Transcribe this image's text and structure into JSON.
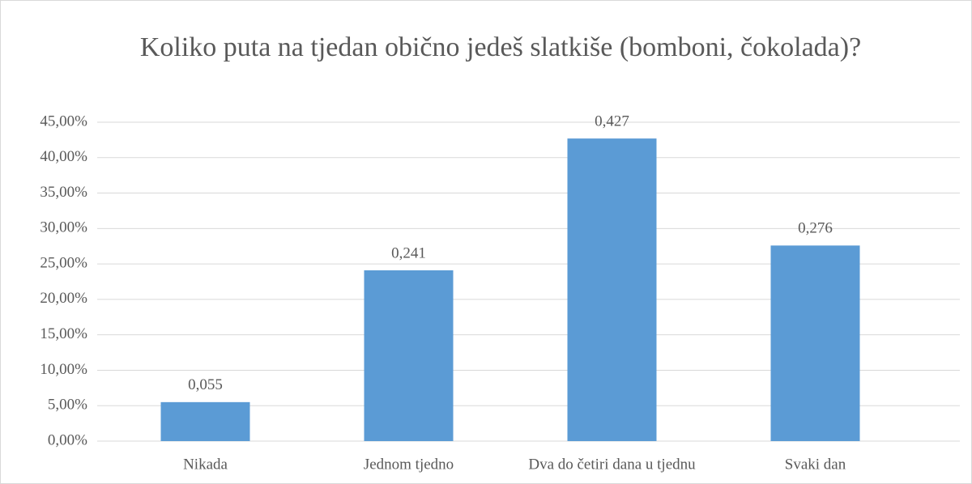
{
  "chart_data": {
    "type": "bar",
    "title": "Koliko puta na tjedan obično jedeš slatkiše (bomboni, čokolada)?",
    "categories": [
      "Nikada",
      "Jednom tjedno",
      "Dva do četiri dana u tjednu",
      "Svaki dan"
    ],
    "values": [
      5.5,
      24.1,
      42.7,
      27.6
    ],
    "value_labels": [
      "0,055",
      "0,241",
      "0,427",
      "0,276"
    ],
    "color": "#5b9bd5",
    "ylim": [
      0,
      45
    ],
    "yticks": [
      {
        "value": 0,
        "label": "0,00%"
      },
      {
        "value": 5,
        "label": "5,00%"
      },
      {
        "value": 10,
        "label": "10,00%"
      },
      {
        "value": 15,
        "label": "15,00%"
      },
      {
        "value": 20,
        "label": "20,00%"
      },
      {
        "value": 25,
        "label": "25,00%"
      },
      {
        "value": 30,
        "label": "30,00%"
      },
      {
        "value": 35,
        "label": "35,00%"
      },
      {
        "value": 40,
        "label": "40,00%"
      },
      {
        "value": 45,
        "label": "45,00%"
      }
    ],
    "grid": true
  }
}
